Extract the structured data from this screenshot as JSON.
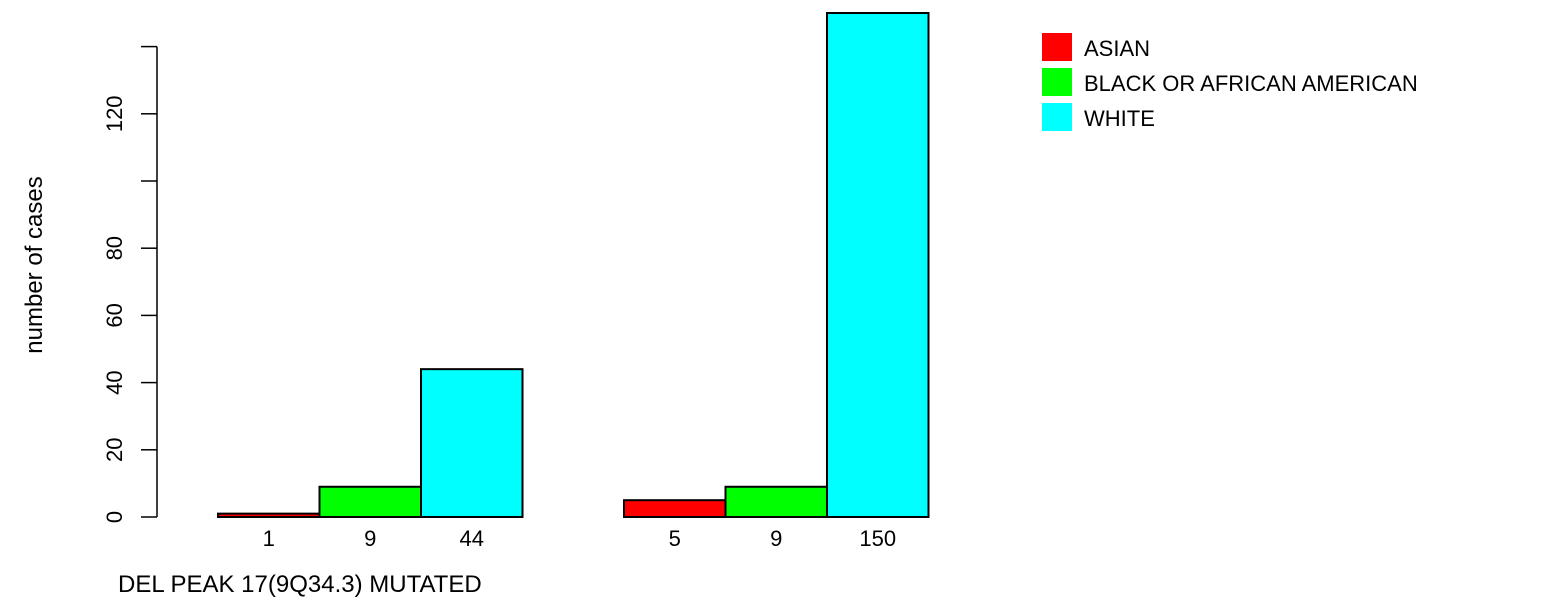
{
  "chart_data": {
    "type": "bar",
    "layout": "grouped",
    "xlabel": "DEL PEAK 17(9Q34.3) MUTATED",
    "ylabel": "number of cases",
    "ylim": [
      0,
      150
    ],
    "yticks": [
      0,
      20,
      40,
      60,
      80,
      100,
      120,
      140
    ],
    "ytick_labels": [
      "0",
      "20",
      "40",
      "60",
      "80",
      "",
      "120",
      ""
    ],
    "groups": [
      {
        "bars": [
          {
            "series": "ASIAN",
            "value": 1,
            "label": "1"
          },
          {
            "series": "BLACK OR AFRICAN AMERICAN",
            "value": 9,
            "label": "9"
          },
          {
            "series": "WHITE",
            "value": 44,
            "label": "44"
          }
        ]
      },
      {
        "bars": [
          {
            "series": "ASIAN",
            "value": 5,
            "label": "5"
          },
          {
            "series": "BLACK OR AFRICAN AMERICAN",
            "value": 9,
            "label": "9"
          },
          {
            "series": "WHITE",
            "value": 150,
            "label": "150"
          }
        ]
      }
    ],
    "legend": [
      {
        "name": "ASIAN",
        "color": "#ff0000"
      },
      {
        "name": "BLACK OR AFRICAN AMERICAN",
        "color": "#00ff00"
      },
      {
        "name": "WHITE",
        "color": "#00ffff"
      }
    ],
    "legend_position": "top-right",
    "grid": false
  }
}
